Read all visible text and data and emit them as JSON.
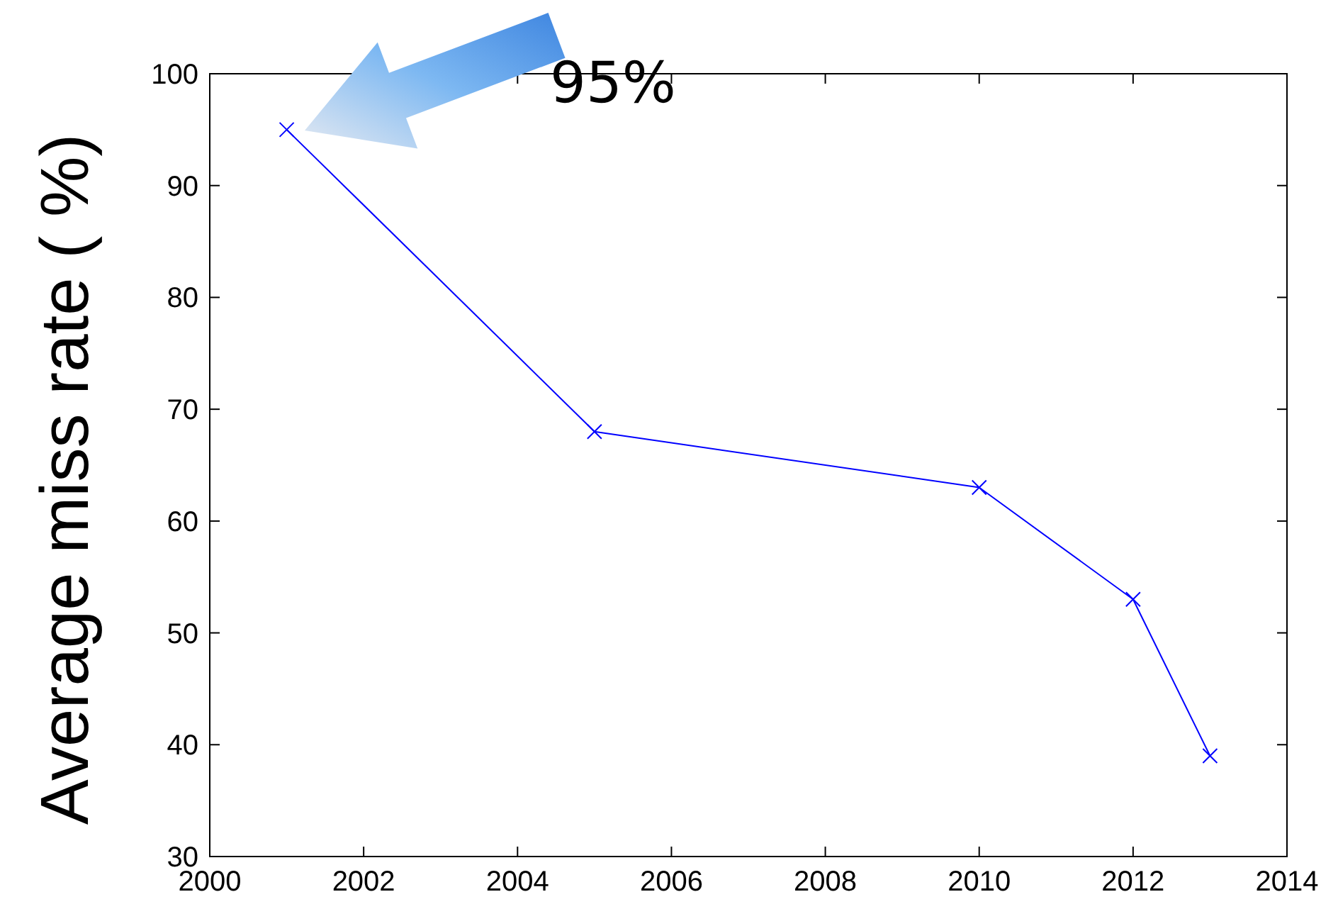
{
  "chart_data": {
    "type": "line",
    "ylabel": "Average miss rate ( %)",
    "x": [
      2001,
      2005,
      2010,
      2012,
      2013
    ],
    "series": [
      {
        "color": "#0000ff",
        "values": [
          95,
          68,
          63,
          53,
          39
        ]
      }
    ],
    "xlim": [
      2000,
      2014
    ],
    "xticks": [
      2000,
      2002,
      2004,
      2006,
      2008,
      2010,
      2012,
      2014
    ],
    "ylim": [
      30,
      100
    ],
    "yticks": [
      30,
      40,
      50,
      60,
      70,
      80,
      90,
      100
    ],
    "marker": "cross",
    "line_style": "solid",
    "grid": false,
    "annotations": [
      "95%"
    ]
  }
}
